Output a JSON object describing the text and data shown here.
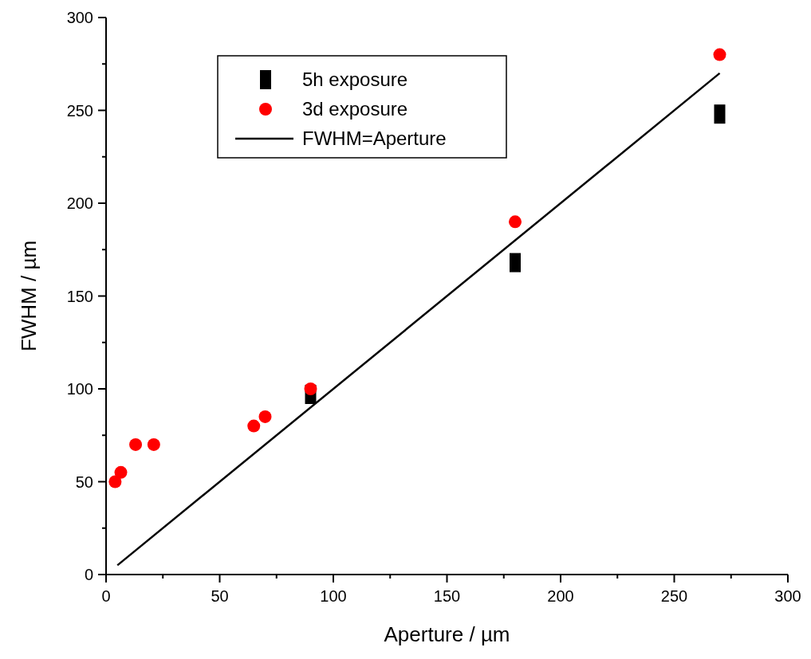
{
  "chart_data": {
    "type": "scatter",
    "xlabel": "Aperture / µm",
    "ylabel": "FWHM / µm",
    "xlim": [
      0,
      300
    ],
    "xticks": [
      0,
      50,
      100,
      150,
      200,
      250,
      300
    ],
    "ylim": [
      0,
      300
    ],
    "yticks": [
      0,
      50,
      100,
      150,
      200,
      250,
      300
    ],
    "grid": false,
    "legend": "top left",
    "series": [
      {
        "name": "5h exposure",
        "type": "scatter",
        "marker": "square",
        "color": "#000000",
        "x": [
          90,
          180,
          270
        ],
        "values": [
          97,
          168,
          248
        ]
      },
      {
        "name": "3d exposure",
        "type": "scatter",
        "marker": "circle",
        "color": "#ff0000",
        "x": [
          4,
          6.5,
          13,
          21,
          65,
          70,
          90,
          180,
          270
        ],
        "values": [
          50,
          55,
          70,
          70,
          80,
          85,
          100,
          190,
          280
        ]
      },
      {
        "name": "FWHM=Aperture",
        "type": "line",
        "marker": "none",
        "color": "#000000",
        "x": [
          5,
          270
        ],
        "values": [
          5,
          270
        ]
      }
    ]
  }
}
